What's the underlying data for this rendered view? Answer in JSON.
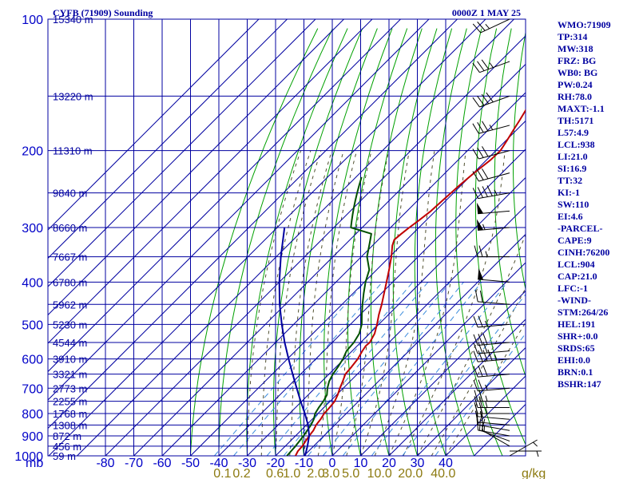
{
  "header": {
    "station": "CYFB (71909) Sounding",
    "time": "0000Z  1 MAY 25"
  },
  "chart_data": {
    "type": "line",
    "chart_kind": "skew-T log-P sounding",
    "pressure_axis": {
      "unit_label": "mb",
      "levels": [
        100,
        200,
        300,
        400,
        500,
        600,
        700,
        800,
        900,
        1000
      ],
      "scale": "log",
      "range": [
        100,
        1000
      ]
    },
    "temperature_axis": {
      "ticks": [
        -80,
        -70,
        -60,
        -50,
        -40,
        -30,
        -20,
        -10,
        0,
        10,
        20,
        30,
        40
      ],
      "tick_labels": [
        "-80",
        "-70",
        "-60",
        "-50",
        "-40",
        "-30",
        "-20",
        "-10",
        "0",
        "10",
        "20",
        "30",
        "40"
      ]
    },
    "height_labels": [
      {
        "p": 100,
        "label": "15340 m"
      },
      {
        "p": 150,
        "label": "13220 m"
      },
      {
        "p": 200,
        "label": "11310 m"
      },
      {
        "p": 250,
        "label": "9840 m"
      },
      {
        "p": 300,
        "label": "8660 m"
      },
      {
        "p": 350,
        "label": "7667 m"
      },
      {
        "p": 400,
        "label": "6780 m"
      },
      {
        "p": 450,
        "label": "5962 m"
      },
      {
        "p": 500,
        "label": "5230 m"
      },
      {
        "p": 550,
        "label": "4544 m"
      },
      {
        "p": 600,
        "label": "3910 m"
      },
      {
        "p": 650,
        "label": "3321 m"
      },
      {
        "p": 700,
        "label": "2773 m"
      },
      {
        "p": 750,
        "label": "2255 m"
      },
      {
        "p": 800,
        "label": "1768 m"
      },
      {
        "p": 850,
        "label": "1308 m"
      },
      {
        "p": 900,
        "label": "872 m"
      },
      {
        "p": 950,
        "label": "456 m"
      },
      {
        "p": 1000,
        "label": "59 m"
      }
    ],
    "mixing_ratio_labels": [
      {
        "w": 0.1,
        "label": "0.1"
      },
      {
        "w": 0.2,
        "label": "0.2"
      },
      {
        "w": 0.6,
        "label": "0.6"
      },
      {
        "w": 1.0,
        "label": "1.0"
      },
      {
        "w": 2.0,
        "label": "2.0"
      },
      {
        "w": 3.0,
        "label": "3.0"
      },
      {
        "w": 5.0,
        "label": "5.0"
      },
      {
        "w": 10.0,
        "label": "10.0"
      },
      {
        "w": 20.0,
        "label": "20.0"
      },
      {
        "w": 40.0,
        "label": "40.0"
      }
    ],
    "mixing_ratio_unit": "g/kg",
    "series": [
      {
        "role": "temperature",
        "color": "#c00000",
        "points": [
          [
            1000,
            -13
          ],
          [
            975,
            -13.8
          ],
          [
            950,
            -14
          ],
          [
            925,
            -14.6
          ],
          [
            900,
            -15.2
          ],
          [
            875,
            -15.6
          ],
          [
            850,
            -16.6
          ],
          [
            825,
            -17
          ],
          [
            800,
            -17.8
          ],
          [
            775,
            -18
          ],
          [
            750,
            -18.4
          ],
          [
            725,
            -19.6
          ],
          [
            700,
            -21.2
          ],
          [
            675,
            -22.6
          ],
          [
            650,
            -24.2
          ],
          [
            625,
            -24.6
          ],
          [
            600,
            -25.2
          ],
          [
            575,
            -26.4
          ],
          [
            560,
            -27
          ],
          [
            550,
            -26.8
          ],
          [
            525,
            -28.2
          ],
          [
            500,
            -30.6
          ],
          [
            475,
            -33.4
          ],
          [
            450,
            -36
          ],
          [
            425,
            -39
          ],
          [
            400,
            -42.2
          ],
          [
            375,
            -45.6
          ],
          [
            350,
            -49.4
          ],
          [
            330,
            -53
          ],
          [
            320,
            -54.4
          ],
          [
            310,
            -54
          ],
          [
            300,
            -53.4
          ],
          [
            290,
            -52.6
          ],
          [
            275,
            -51.6
          ],
          [
            260,
            -51.2
          ],
          [
            240,
            -50.6
          ],
          [
            225,
            -49.8
          ],
          [
            210,
            -48.6
          ],
          [
            200,
            -48.4
          ],
          [
            190,
            -49.6
          ],
          [
            180,
            -51
          ],
          [
            170,
            -52.4
          ],
          [
            160,
            -54
          ],
          [
            150,
            -55
          ],
          [
            140,
            -56.4
          ],
          [
            130,
            -57.2
          ],
          [
            120,
            -57.6
          ],
          [
            110,
            -58.6
          ],
          [
            100,
            -60.4
          ]
        ]
      },
      {
        "role": "dewpoint",
        "color": "#005000",
        "points": [
          [
            1000,
            -16
          ],
          [
            975,
            -16.2
          ],
          [
            950,
            -16.4
          ],
          [
            925,
            -16.8
          ],
          [
            900,
            -17.2
          ],
          [
            875,
            -17.8
          ],
          [
            850,
            -18.4
          ],
          [
            825,
            -19.4
          ],
          [
            800,
            -21
          ],
          [
            775,
            -21.8
          ],
          [
            750,
            -22.4
          ],
          [
            725,
            -23.4
          ],
          [
            700,
            -25.6
          ],
          [
            675,
            -27.4
          ],
          [
            650,
            -28.6
          ],
          [
            625,
            -29.4
          ],
          [
            600,
            -30.4
          ],
          [
            575,
            -32
          ],
          [
            550,
            -32.4
          ],
          [
            525,
            -33.6
          ],
          [
            500,
            -36
          ],
          [
            475,
            -39.4
          ],
          [
            450,
            -42.8
          ],
          [
            425,
            -46.2
          ],
          [
            400,
            -49.6
          ],
          [
            375,
            -52.6
          ],
          [
            350,
            -58
          ],
          [
            325,
            -62
          ],
          [
            310,
            -64.6
          ],
          [
            300,
            -74
          ],
          [
            290,
            -76
          ],
          [
            280,
            -78
          ],
          [
            270,
            -80
          ],
          [
            260,
            -82
          ],
          [
            250,
            -84
          ],
          [
            240,
            -86
          ],
          [
            230,
            -88
          ]
        ]
      },
      {
        "role": "parcel",
        "color": "#0000a0",
        "points": [
          [
            1000,
            -9.6
          ],
          [
            950,
            -12.2
          ],
          [
            900,
            -15.2
          ],
          [
            850,
            -19.4
          ],
          [
            800,
            -24.6
          ],
          [
            750,
            -30.4
          ],
          [
            700,
            -36.4
          ],
          [
            650,
            -42.8
          ],
          [
            600,
            -49.6
          ],
          [
            550,
            -56.8
          ],
          [
            500,
            -64.2
          ],
          [
            450,
            -72
          ],
          [
            400,
            -80
          ],
          [
            350,
            -88.4
          ],
          [
            300,
            -97.4
          ]
        ]
      }
    ],
    "wind_barbs": [
      {
        "p": 1000,
        "dir": 60,
        "kt": 5
      },
      {
        "p": 975,
        "dir": 90,
        "kt": 5
      },
      {
        "p": 950,
        "dir": 300,
        "kt": 10
      },
      {
        "p": 925,
        "dir": 290,
        "kt": 15
      },
      {
        "p": 900,
        "dir": 280,
        "kt": 15
      },
      {
        "p": 875,
        "dir": 280,
        "kt": 20
      },
      {
        "p": 850,
        "dir": 275,
        "kt": 20
      },
      {
        "p": 825,
        "dir": 275,
        "kt": 20
      },
      {
        "p": 800,
        "dir": 270,
        "kt": 25
      },
      {
        "p": 775,
        "dir": 270,
        "kt": 25
      },
      {
        "p": 750,
        "dir": 270,
        "kt": 25
      },
      {
        "p": 700,
        "dir": 265,
        "kt": 25
      },
      {
        "p": 650,
        "dir": 265,
        "kt": 30
      },
      {
        "p": 600,
        "dir": 265,
        "kt": 45
      },
      {
        "p": 575,
        "dir": 265,
        "kt": 30
      },
      {
        "p": 550,
        "dir": 265,
        "kt": 30
      },
      {
        "p": 500,
        "dir": 265,
        "kt": 25
      },
      {
        "p": 450,
        "dir": 275,
        "kt": 20
      },
      {
        "p": 400,
        "dir": 275,
        "kt": 50
      },
      {
        "p": 350,
        "dir": 270,
        "kt": 25
      },
      {
        "p": 300,
        "dir": 265,
        "kt": 55
      },
      {
        "p": 275,
        "dir": 265,
        "kt": 50
      },
      {
        "p": 250,
        "dir": 260,
        "kt": 45
      },
      {
        "p": 225,
        "dir": 255,
        "kt": 30
      },
      {
        "p": 200,
        "dir": 255,
        "kt": 30
      },
      {
        "p": 175,
        "dir": 255,
        "kt": 35
      },
      {
        "p": 150,
        "dir": 250,
        "kt": 40
      },
      {
        "p": 125,
        "dir": 250,
        "kt": 35
      },
      {
        "p": 100,
        "dir": 245,
        "kt": 25
      }
    ]
  },
  "indices": [
    "WMO:71909",
    "TP:314",
    "MW:318",
    "FRZ: BG",
    "WB0: BG",
    "PW:0.24",
    "RH:78.0",
    "MAXT:-1.1",
    "TH:5171",
    "L57:4.9",
    "LCL:938",
    "LI:21.0",
    "SI:16.9",
    "TT:32",
    "KI:-1",
    "SW:110",
    "EI:4.6",
    "-PARCEL-",
    "CAPE:9",
    "CINH:76200",
    "LCL:904",
    "CAP:21.0",
    "LFC:-1",
    "-WIND-",
    "STM:264/26",
    "HEL:191",
    "SHR+:0.0",
    "SRDS:65",
    "EHI:0.0",
    "BRN:0.1",
    "BSHR:147"
  ],
  "colors": {
    "grid": "#0000a0",
    "dry_adiabat": "#00a000",
    "moist_adiabat": "#505030",
    "mixing_ratio": "#3c8cdc",
    "mixing_ratio_labels": "#8c7a10"
  }
}
